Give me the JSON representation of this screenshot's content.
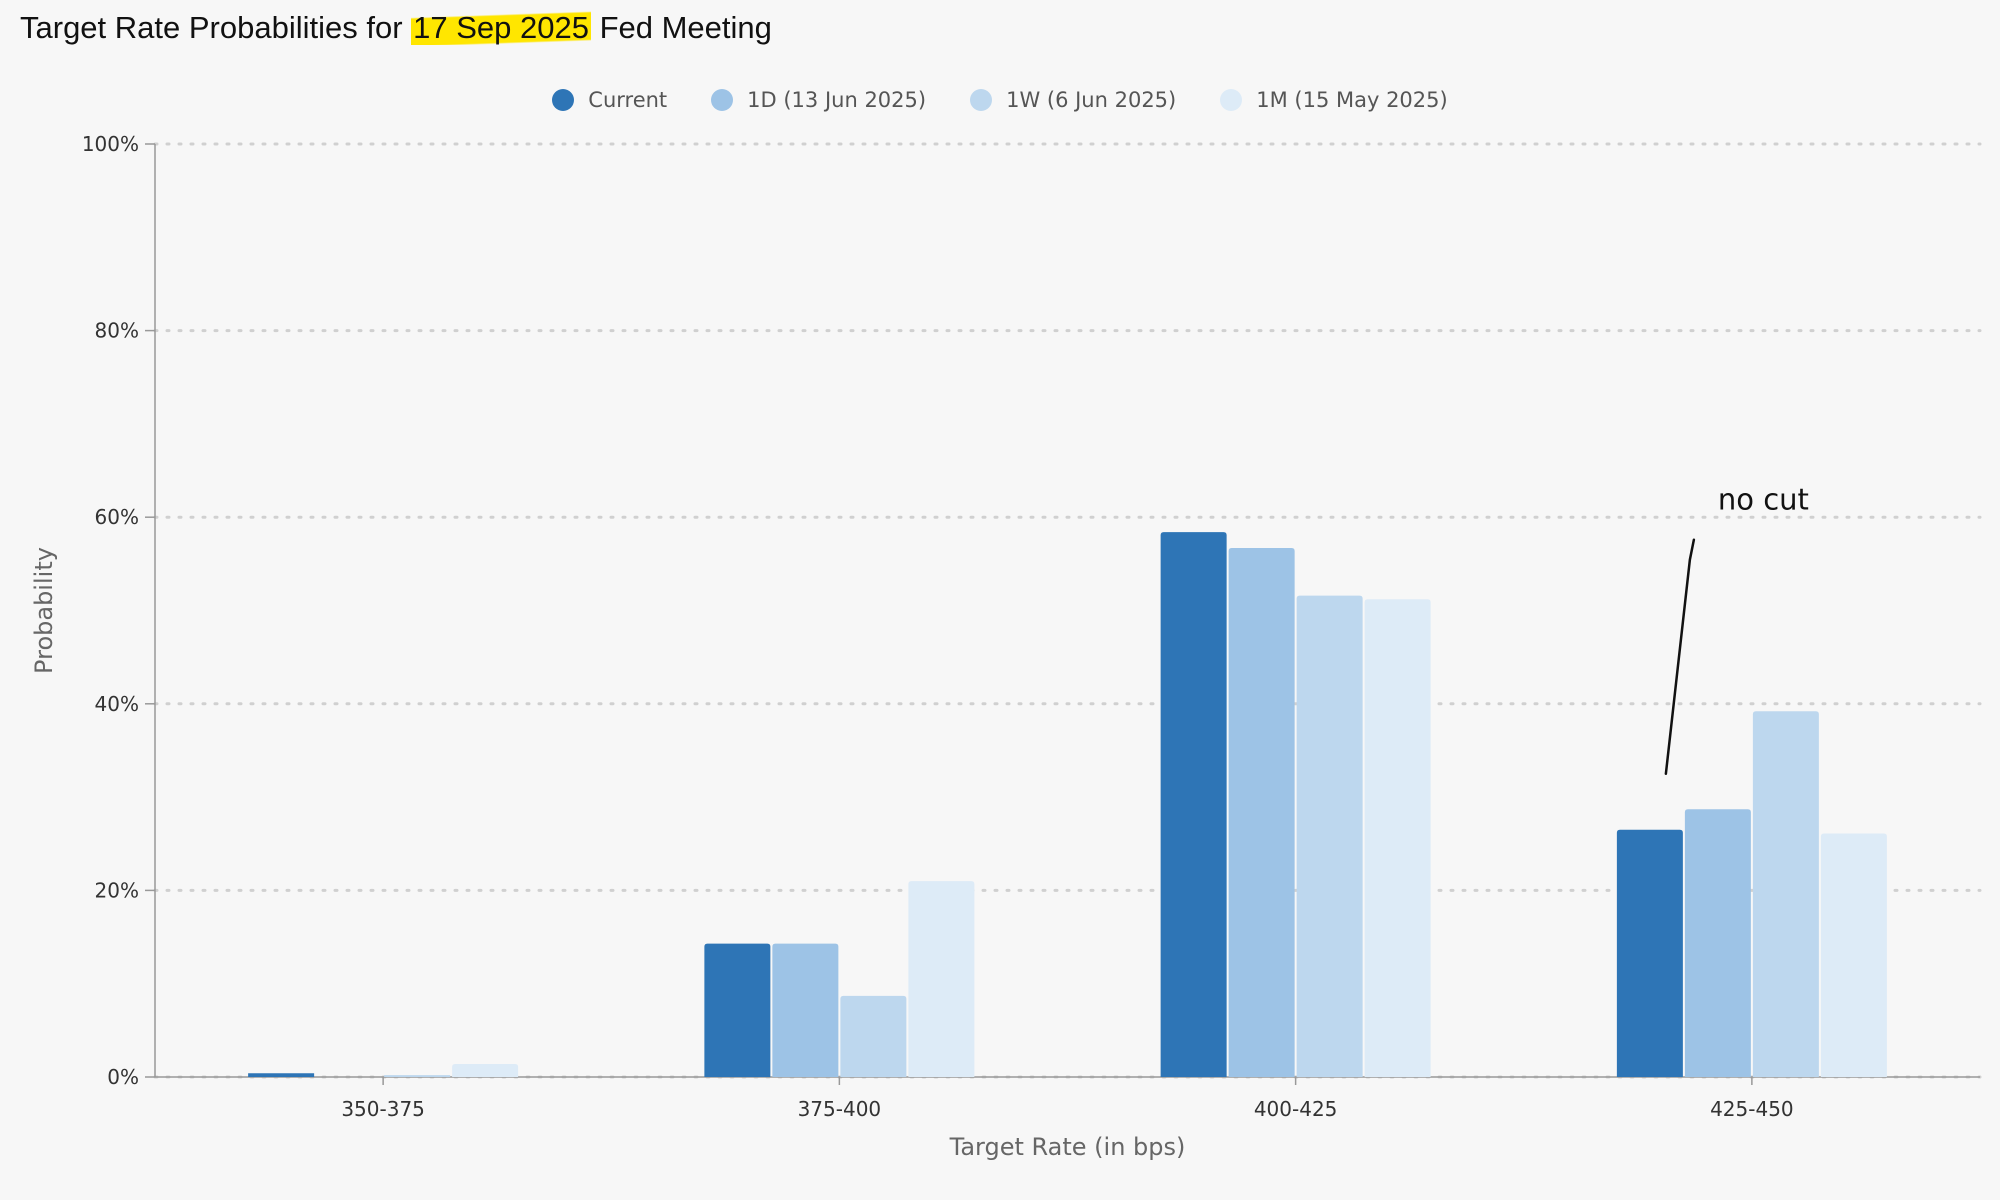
{
  "title": {
    "prefix": "Target Rate Probabilities for ",
    "highlight": "17 Sep 2025",
    "suffix": " Fed Meeting"
  },
  "chart_data": {
    "type": "bar",
    "categories": [
      "350-375",
      "375-400",
      "400-425",
      "425-450"
    ],
    "series": [
      {
        "name": "Current",
        "color": "#2e75b6",
        "values": [
          0.4,
          14.3,
          58.4,
          26.5
        ]
      },
      {
        "name": "1D (13 Jun 2025)",
        "color": "#9dc3e6",
        "values": [
          0.0,
          14.3,
          56.7,
          28.7
        ]
      },
      {
        "name": "1W (6 Jun 2025)",
        "color": "#bdd7ee",
        "values": [
          0.2,
          8.7,
          51.6,
          39.2
        ]
      },
      {
        "name": "1M (15 May 2025)",
        "color": "#ddebf7",
        "values": [
          1.4,
          21.0,
          51.2,
          26.1
        ]
      }
    ],
    "xlabel": "Target Rate (in bps)",
    "ylabel": "Probability",
    "ylim": [
      0,
      100
    ],
    "yticks": [
      "0%",
      "20%",
      "40%",
      "60%",
      "80%",
      "100%"
    ],
    "grid": true,
    "legend": "top-center",
    "annotation": {
      "text": "no cut",
      "category": "425-450"
    }
  }
}
